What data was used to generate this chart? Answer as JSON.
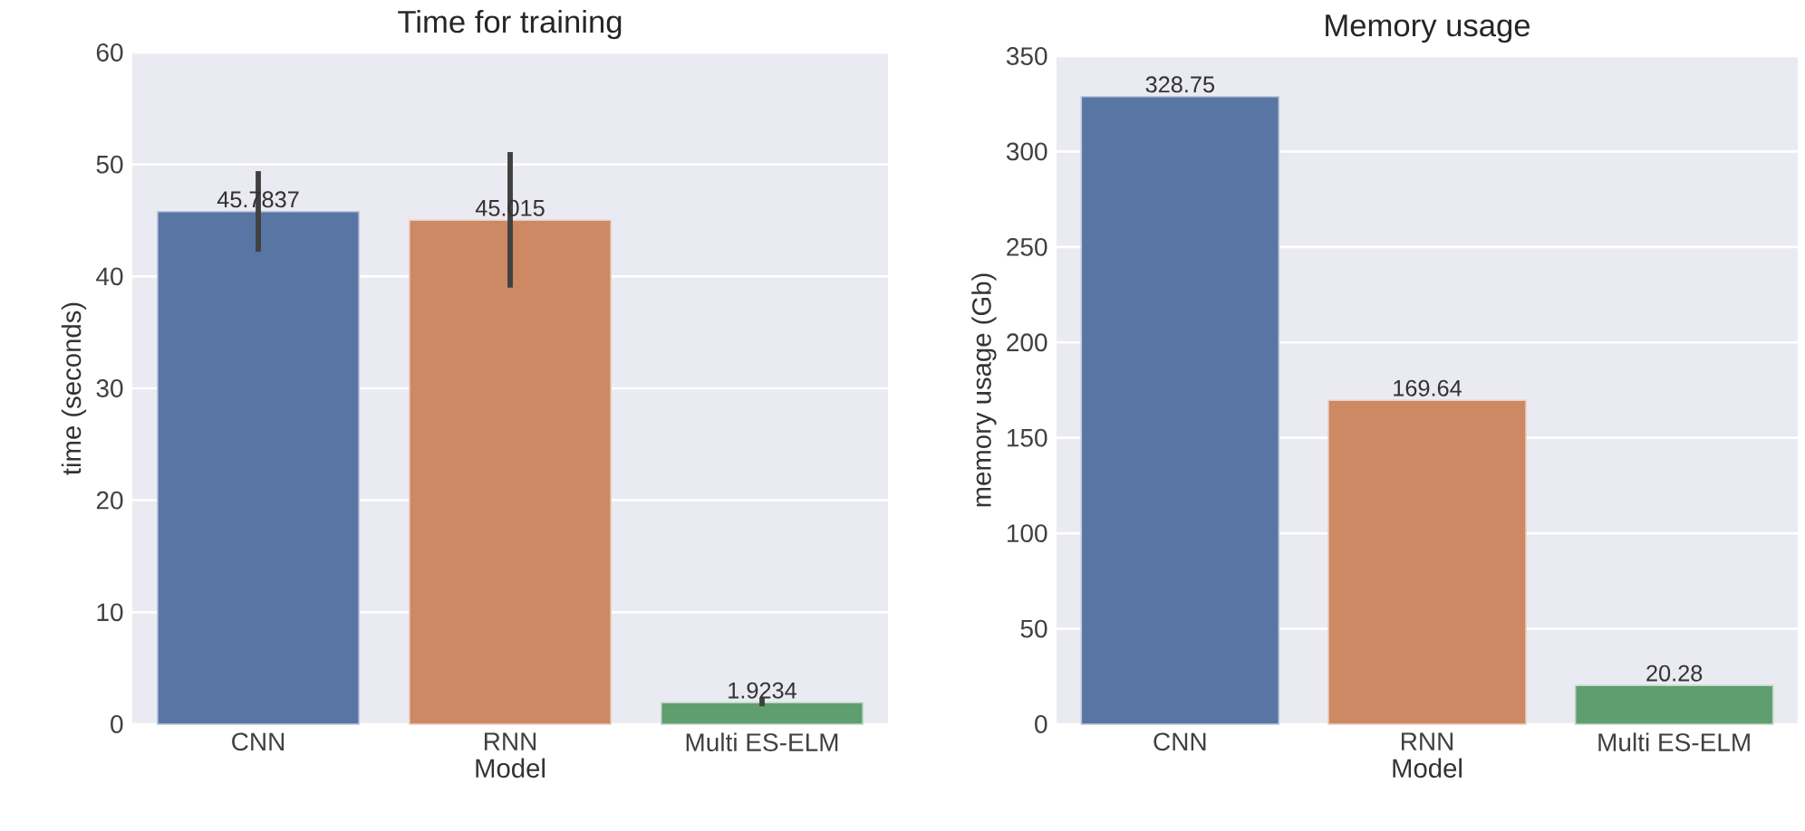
{
  "chart_data": [
    {
      "type": "bar",
      "title": "Time for training",
      "xlabel": "Model",
      "ylabel": "time (seconds)",
      "categories": [
        "CNN",
        "RNN",
        "Multi ES-ELM"
      ],
      "values": [
        45.7837,
        45.015,
        1.9234
      ],
      "colors": [
        "#5975a4",
        "#cc8963",
        "#5f9e6e"
      ],
      "errors": [
        [
          42.2,
          49.4
        ],
        [
          39.0,
          51.1
        ],
        [
          1.6,
          2.4
        ]
      ],
      "ylim": [
        0,
        60
      ],
      "yticks": [
        0,
        10,
        20,
        30,
        40,
        50,
        60
      ],
      "grid": "y",
      "data_labels": true
    },
    {
      "type": "bar",
      "title": "Memory usage",
      "xlabel": "Model",
      "ylabel": "memory usage (Gb)",
      "categories": [
        "CNN",
        "RNN",
        "Multi ES-ELM"
      ],
      "values": [
        328.75,
        169.64,
        20.28
      ],
      "colors": [
        "#5975a4",
        "#cc8963",
        "#5f9e6e"
      ],
      "ylim": [
        0,
        350
      ],
      "yticks": [
        0,
        50,
        100,
        150,
        200,
        250,
        300,
        350
      ],
      "grid": "y",
      "data_labels": true
    }
  ]
}
